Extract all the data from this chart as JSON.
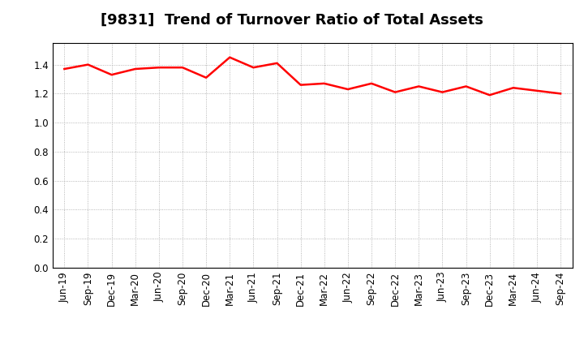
{
  "title": "[9831]  Trend of Turnover Ratio of Total Assets",
  "x_labels": [
    "Jun-19",
    "Sep-19",
    "Dec-19",
    "Mar-20",
    "Jun-20",
    "Sep-20",
    "Dec-20",
    "Mar-21",
    "Jun-21",
    "Sep-21",
    "Dec-21",
    "Mar-22",
    "Jun-22",
    "Sep-22",
    "Dec-22",
    "Mar-23",
    "Jun-23",
    "Sep-23",
    "Dec-23",
    "Mar-24",
    "Jun-24",
    "Sep-24"
  ],
  "y_values": [
    1.37,
    1.4,
    1.33,
    1.37,
    1.38,
    1.38,
    1.31,
    1.45,
    1.38,
    1.41,
    1.26,
    1.27,
    1.23,
    1.27,
    1.21,
    1.25,
    1.21,
    1.25,
    1.19,
    1.24,
    1.22,
    1.2
  ],
  "line_color": "#ff0000",
  "line_width": 1.8,
  "ylim": [
    0.0,
    1.55
  ],
  "yticks": [
    0.0,
    0.2,
    0.4,
    0.6,
    0.8,
    1.0,
    1.2,
    1.4
  ],
  "background_color": "#ffffff",
  "plot_bg_color": "#ffffff",
  "grid_color": "#999999",
  "title_fontsize": 13,
  "tick_fontsize": 8.5
}
